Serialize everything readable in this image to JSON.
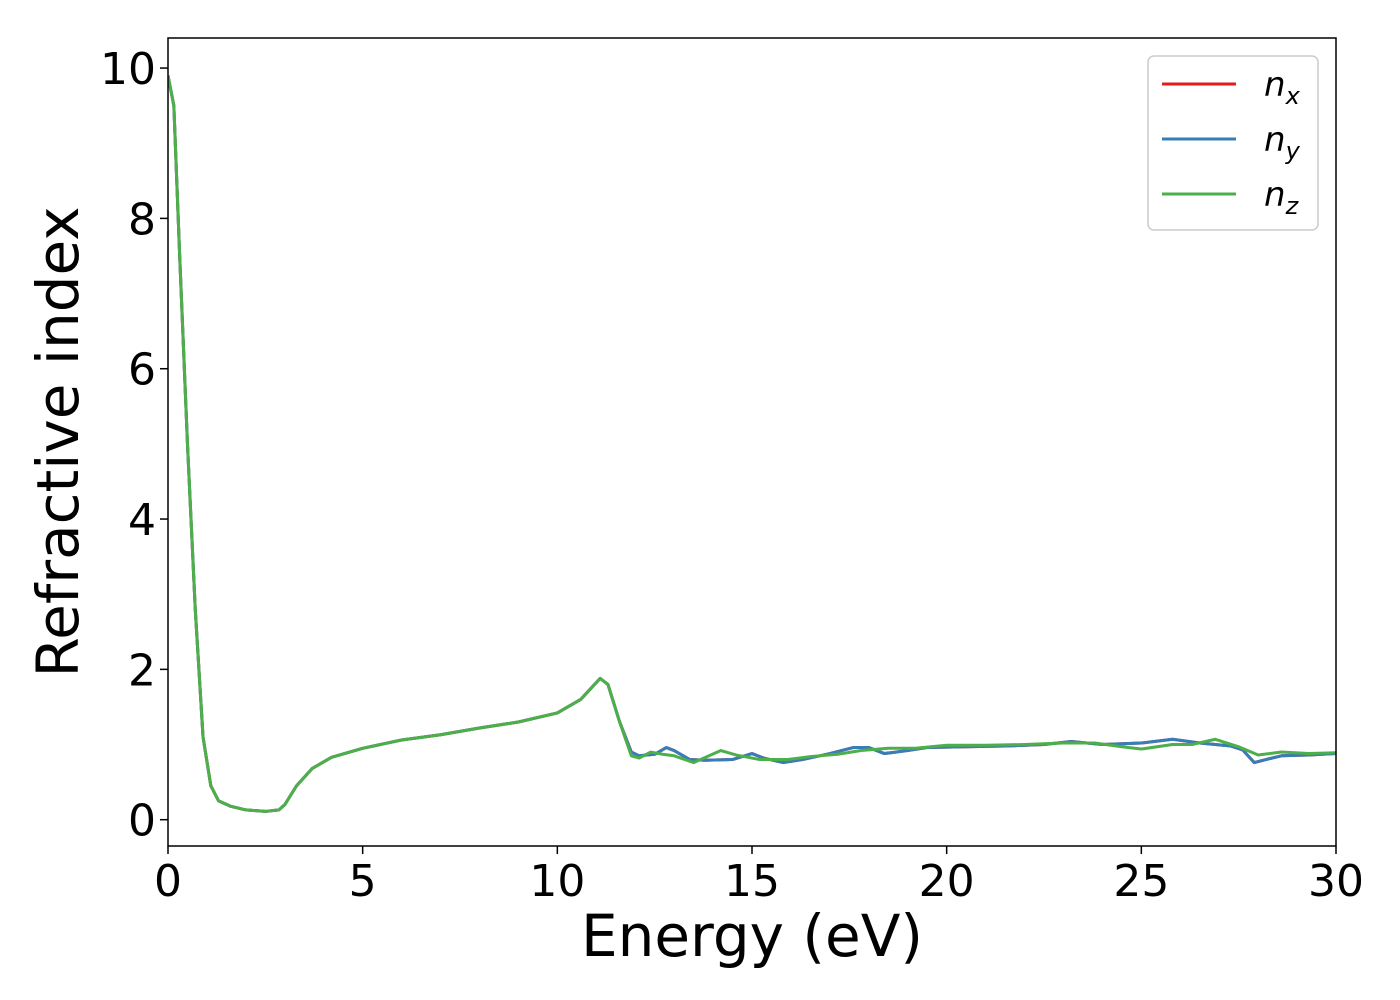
{
  "chart_data": {
    "type": "line",
    "title": "",
    "xlabel": "Energy (eV)",
    "ylabel": "Refractive index",
    "xlim": [
      0,
      30
    ],
    "ylim": [
      -0.35,
      10.4
    ],
    "xticks": [
      0,
      5,
      10,
      15,
      20,
      25,
      30
    ],
    "yticks": [
      0,
      2,
      4,
      6,
      8,
      10
    ],
    "grid": false,
    "legend": {
      "placement": "top-right",
      "entries": [
        {
          "base": "n",
          "sub": "x",
          "color": "#e41a1c"
        },
        {
          "base": "n",
          "sub": "y",
          "color": "#377eb8"
        },
        {
          "base": "n",
          "sub": "z",
          "color": "#4daf4a"
        }
      ]
    },
    "series": [
      {
        "name": "nx",
        "color": "#e41a1c",
        "points": [
          [
            0,
            9.9
          ],
          [
            0.15,
            9.5
          ],
          [
            0.3,
            7.5
          ],
          [
            0.5,
            5.0
          ],
          [
            0.7,
            2.8
          ],
          [
            0.9,
            1.1
          ],
          [
            1.1,
            0.45
          ],
          [
            1.3,
            0.25
          ],
          [
            1.6,
            0.18
          ],
          [
            2.0,
            0.13
          ],
          [
            2.5,
            0.11
          ],
          [
            2.85,
            0.13
          ],
          [
            3.0,
            0.2
          ],
          [
            3.3,
            0.45
          ],
          [
            3.7,
            0.68
          ],
          [
            4.2,
            0.83
          ],
          [
            5.0,
            0.95
          ],
          [
            6.0,
            1.06
          ],
          [
            7.0,
            1.13
          ],
          [
            8.0,
            1.22
          ],
          [
            9.0,
            1.3
          ],
          [
            10.0,
            1.42
          ],
          [
            10.6,
            1.6
          ],
          [
            11.1,
            1.88
          ],
          [
            11.3,
            1.8
          ],
          [
            11.6,
            1.3
          ],
          [
            11.9,
            0.9
          ],
          [
            12.1,
            0.85
          ],
          [
            12.5,
            0.87
          ],
          [
            12.8,
            0.96
          ],
          [
            13.0,
            0.92
          ],
          [
            13.4,
            0.8
          ],
          [
            13.8,
            0.79
          ],
          [
            14.5,
            0.8
          ],
          [
            15.0,
            0.88
          ],
          [
            15.3,
            0.82
          ],
          [
            15.8,
            0.76
          ],
          [
            16.3,
            0.8
          ],
          [
            17.0,
            0.88
          ],
          [
            17.6,
            0.96
          ],
          [
            18.0,
            0.96
          ],
          [
            18.4,
            0.88
          ],
          [
            19.0,
            0.92
          ],
          [
            19.5,
            0.96
          ],
          [
            20.5,
            0.97
          ],
          [
            21.5,
            0.98
          ],
          [
            22.5,
            1.0
          ],
          [
            23.2,
            1.04
          ],
          [
            24.0,
            1.0
          ],
          [
            25.0,
            1.02
          ],
          [
            25.8,
            1.07
          ],
          [
            26.5,
            1.02
          ],
          [
            27.3,
            0.98
          ],
          [
            27.6,
            0.93
          ],
          [
            27.9,
            0.76
          ],
          [
            28.2,
            0.8
          ],
          [
            28.6,
            0.85
          ],
          [
            29.3,
            0.86
          ],
          [
            30.0,
            0.88
          ]
        ]
      },
      {
        "name": "ny",
        "color": "#377eb8",
        "points": [
          [
            0,
            9.9
          ],
          [
            0.15,
            9.5
          ],
          [
            0.3,
            7.5
          ],
          [
            0.5,
            5.0
          ],
          [
            0.7,
            2.8
          ],
          [
            0.9,
            1.1
          ],
          [
            1.1,
            0.45
          ],
          [
            1.3,
            0.25
          ],
          [
            1.6,
            0.18
          ],
          [
            2.0,
            0.13
          ],
          [
            2.5,
            0.11
          ],
          [
            2.85,
            0.13
          ],
          [
            3.0,
            0.2
          ],
          [
            3.3,
            0.45
          ],
          [
            3.7,
            0.68
          ],
          [
            4.2,
            0.83
          ],
          [
            5.0,
            0.95
          ],
          [
            6.0,
            1.06
          ],
          [
            7.0,
            1.13
          ],
          [
            8.0,
            1.22
          ],
          [
            9.0,
            1.3
          ],
          [
            10.0,
            1.42
          ],
          [
            10.6,
            1.6
          ],
          [
            11.1,
            1.88
          ],
          [
            11.3,
            1.8
          ],
          [
            11.6,
            1.3
          ],
          [
            11.9,
            0.9
          ],
          [
            12.1,
            0.85
          ],
          [
            12.5,
            0.87
          ],
          [
            12.8,
            0.96
          ],
          [
            13.0,
            0.92
          ],
          [
            13.4,
            0.8
          ],
          [
            13.8,
            0.79
          ],
          [
            14.5,
            0.8
          ],
          [
            15.0,
            0.88
          ],
          [
            15.3,
            0.82
          ],
          [
            15.8,
            0.76
          ],
          [
            16.3,
            0.8
          ],
          [
            17.0,
            0.88
          ],
          [
            17.6,
            0.96
          ],
          [
            18.0,
            0.96
          ],
          [
            18.4,
            0.88
          ],
          [
            19.0,
            0.92
          ],
          [
            19.5,
            0.96
          ],
          [
            20.5,
            0.97
          ],
          [
            21.5,
            0.98
          ],
          [
            22.5,
            1.0
          ],
          [
            23.2,
            1.04
          ],
          [
            24.0,
            1.0
          ],
          [
            25.0,
            1.02
          ],
          [
            25.8,
            1.07
          ],
          [
            26.5,
            1.02
          ],
          [
            27.3,
            0.98
          ],
          [
            27.6,
            0.93
          ],
          [
            27.9,
            0.76
          ],
          [
            28.2,
            0.8
          ],
          [
            28.6,
            0.85
          ],
          [
            29.3,
            0.86
          ],
          [
            30.0,
            0.88
          ]
        ]
      },
      {
        "name": "nz",
        "color": "#4daf4a",
        "points": [
          [
            0,
            9.9
          ],
          [
            0.15,
            9.5
          ],
          [
            0.3,
            7.5
          ],
          [
            0.5,
            5.0
          ],
          [
            0.7,
            2.8
          ],
          [
            0.9,
            1.1
          ],
          [
            1.1,
            0.45
          ],
          [
            1.3,
            0.25
          ],
          [
            1.6,
            0.18
          ],
          [
            2.0,
            0.13
          ],
          [
            2.5,
            0.11
          ],
          [
            2.85,
            0.13
          ],
          [
            3.0,
            0.2
          ],
          [
            3.3,
            0.45
          ],
          [
            3.7,
            0.68
          ],
          [
            4.2,
            0.83
          ],
          [
            5.0,
            0.95
          ],
          [
            6.0,
            1.06
          ],
          [
            7.0,
            1.13
          ],
          [
            8.0,
            1.22
          ],
          [
            9.0,
            1.3
          ],
          [
            10.0,
            1.42
          ],
          [
            10.6,
            1.6
          ],
          [
            11.1,
            1.88
          ],
          [
            11.3,
            1.8
          ],
          [
            11.6,
            1.3
          ],
          [
            11.9,
            0.85
          ],
          [
            12.1,
            0.82
          ],
          [
            12.4,
            0.9
          ],
          [
            12.7,
            0.87
          ],
          [
            13.0,
            0.85
          ],
          [
            13.5,
            0.76
          ],
          [
            14.2,
            0.92
          ],
          [
            14.6,
            0.86
          ],
          [
            15.2,
            0.8
          ],
          [
            15.9,
            0.8
          ],
          [
            16.5,
            0.84
          ],
          [
            17.2,
            0.87
          ],
          [
            17.8,
            0.92
          ],
          [
            18.5,
            0.95
          ],
          [
            19.2,
            0.95
          ],
          [
            20.0,
            0.99
          ],
          [
            21.0,
            0.99
          ],
          [
            22.0,
            1.0
          ],
          [
            23.0,
            1.02
          ],
          [
            23.8,
            1.02
          ],
          [
            24.5,
            0.97
          ],
          [
            25.0,
            0.94
          ],
          [
            25.8,
            1.0
          ],
          [
            26.3,
            1.0
          ],
          [
            26.9,
            1.07
          ],
          [
            27.5,
            0.97
          ],
          [
            28.0,
            0.86
          ],
          [
            28.6,
            0.9
          ],
          [
            29.3,
            0.88
          ],
          [
            30.0,
            0.89
          ]
        ]
      }
    ]
  }
}
